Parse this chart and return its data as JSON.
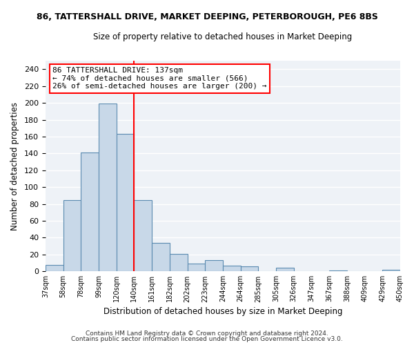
{
  "title": "86, TATTERSHALL DRIVE, MARKET DEEPING, PETERBOROUGH, PE6 8BS",
  "subtitle": "Size of property relative to detached houses in Market Deeping",
  "xlabel": "Distribution of detached houses by size in Market Deeping",
  "ylabel": "Number of detached properties",
  "bar_color": "#c8d8e8",
  "bar_edge_color": "#5a8ab0",
  "bins": [
    "37sqm",
    "58sqm",
    "78sqm",
    "99sqm",
    "120sqm",
    "140sqm",
    "161sqm",
    "182sqm",
    "202sqm",
    "223sqm",
    "244sqm",
    "264sqm",
    "285sqm",
    "305sqm",
    "326sqm",
    "347sqm",
    "367sqm",
    "388sqm",
    "409sqm",
    "429sqm",
    "450sqm"
  ],
  "values": [
    8,
    85,
    141,
    199,
    163,
    85,
    34,
    21,
    9,
    13,
    7,
    6,
    0,
    4,
    0,
    0,
    1,
    0,
    0,
    2
  ],
  "annotation_title": "86 TATTERSHALL DRIVE: 137sqm",
  "annotation_line1": "← 74% of detached houses are smaller (566)",
  "annotation_line2": "26% of semi-detached houses are larger (200) →",
  "ylim": [
    0,
    250
  ],
  "yticks": [
    0,
    20,
    40,
    60,
    80,
    100,
    120,
    140,
    160,
    180,
    200,
    220,
    240
  ],
  "footer1": "Contains HM Land Registry data © Crown copyright and database right 2024.",
  "footer2": "Contains public sector information licensed under the Open Government Licence v3.0.",
  "background_color": "#eef2f7",
  "redline_bin_index": 5
}
